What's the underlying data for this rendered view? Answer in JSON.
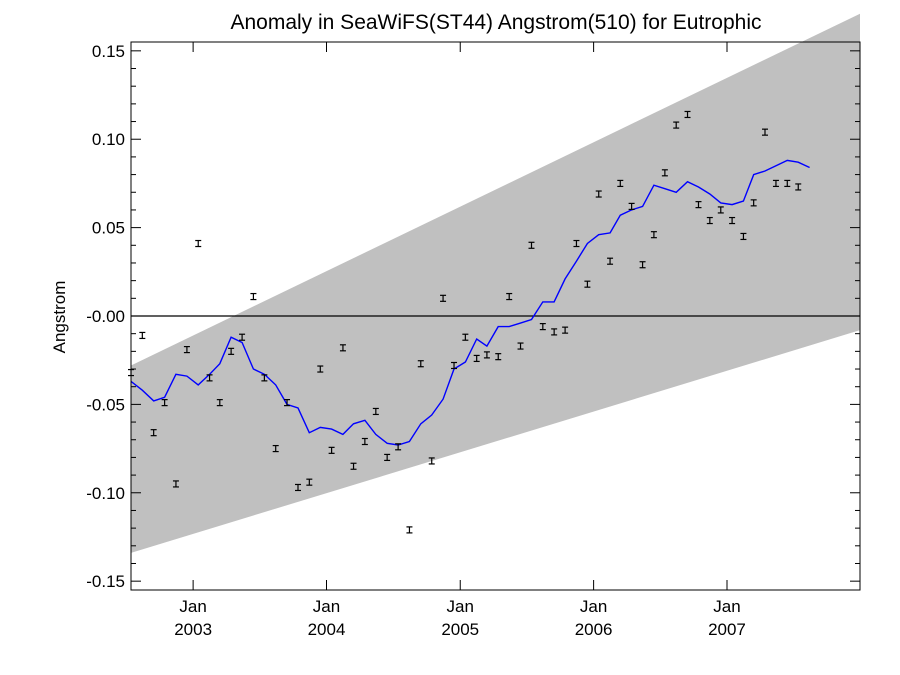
{
  "chart_data": {
    "type": "scatter",
    "title": "Anomaly in SeaWiFS(ST44) Angstrom(510) for Eutrophic",
    "xlabel": "",
    "ylabel": "Angstrom",
    "xlim": [
      "2002-07-15",
      "2007-12-31"
    ],
    "ylim": [
      -0.155,
      0.155
    ],
    "y_ticks": [
      {
        "value": 0.15,
        "label": "0.15"
      },
      {
        "value": 0.1,
        "label": "0.10"
      },
      {
        "value": 0.05,
        "label": "0.05"
      },
      {
        "value": 0.0,
        "label": "-0.00"
      },
      {
        "value": -0.05,
        "label": "-0.05"
      },
      {
        "value": -0.1,
        "label": "-0.10"
      },
      {
        "value": -0.15,
        "label": "-0.15"
      }
    ],
    "x_ticks": [
      {
        "date": "2003-01-01",
        "month": "Jan",
        "year": "2003"
      },
      {
        "date": "2004-01-01",
        "month": "Jan",
        "year": "2004"
      },
      {
        "date": "2005-01-01",
        "month": "Jan",
        "year": "2005"
      },
      {
        "date": "2006-01-01",
        "month": "Jan",
        "year": "2006"
      },
      {
        "date": "2007-01-01",
        "month": "Jan",
        "year": "2007"
      }
    ],
    "zero_line": 0.0,
    "band": {
      "color": "#c0c0c0",
      "upper": [
        {
          "x": "2002-07-15",
          "y": -0.028
        },
        {
          "x": "2007-12-31",
          "y": 0.171
        }
      ],
      "lower": [
        {
          "x": "2002-07-15",
          "y": -0.134
        },
        {
          "x": "2007-12-31",
          "y": -0.008
        }
      ]
    },
    "series": [
      {
        "style": "errorbar-points",
        "color": "#000000",
        "points": [
          {
            "x": "2002-07-15",
            "y": -0.032
          },
          {
            "x": "2002-08-15",
            "y": -0.011
          },
          {
            "x": "2002-09-15",
            "y": -0.066
          },
          {
            "x": "2002-10-15",
            "y": -0.049
          },
          {
            "x": "2002-11-15",
            "y": -0.095
          },
          {
            "x": "2002-12-15",
            "y": -0.019
          },
          {
            "x": "2003-01-15",
            "y": 0.041
          },
          {
            "x": "2003-02-15",
            "y": -0.035
          },
          {
            "x": "2003-03-15",
            "y": -0.049
          },
          {
            "x": "2003-04-15",
            "y": -0.02
          },
          {
            "x": "2003-05-15",
            "y": -0.012
          },
          {
            "x": "2003-06-15",
            "y": 0.011
          },
          {
            "x": "2003-07-15",
            "y": -0.035
          },
          {
            "x": "2003-08-15",
            "y": -0.075
          },
          {
            "x": "2003-09-15",
            "y": -0.049
          },
          {
            "x": "2003-10-15",
            "y": -0.097
          },
          {
            "x": "2003-11-15",
            "y": -0.094
          },
          {
            "x": "2003-12-15",
            "y": -0.03
          },
          {
            "x": "2004-01-15",
            "y": -0.076
          },
          {
            "x": "2004-02-15",
            "y": -0.018
          },
          {
            "x": "2004-03-15",
            "y": -0.085
          },
          {
            "x": "2004-04-15",
            "y": -0.071
          },
          {
            "x": "2004-05-15",
            "y": -0.054
          },
          {
            "x": "2004-06-15",
            "y": -0.08
          },
          {
            "x": "2004-07-15",
            "y": -0.074
          },
          {
            "x": "2004-08-15",
            "y": -0.121
          },
          {
            "x": "2004-09-15",
            "y": -0.027
          },
          {
            "x": "2004-10-15",
            "y": -0.082
          },
          {
            "x": "2004-11-15",
            "y": 0.01
          },
          {
            "x": "2004-12-15",
            "y": -0.028
          },
          {
            "x": "2005-01-15",
            "y": -0.012
          },
          {
            "x": "2005-02-15",
            "y": -0.024
          },
          {
            "x": "2005-03-15",
            "y": -0.022
          },
          {
            "x": "2005-04-15",
            "y": -0.023
          },
          {
            "x": "2005-05-15",
            "y": 0.011
          },
          {
            "x": "2005-06-15",
            "y": -0.017
          },
          {
            "x": "2005-07-15",
            "y": 0.04
          },
          {
            "x": "2005-08-15",
            "y": -0.006
          },
          {
            "x": "2005-09-15",
            "y": -0.009
          },
          {
            "x": "2005-10-15",
            "y": -0.008
          },
          {
            "x": "2005-11-15",
            "y": 0.041
          },
          {
            "x": "2005-12-15",
            "y": 0.018
          },
          {
            "x": "2006-01-15",
            "y": 0.069
          },
          {
            "x": "2006-02-15",
            "y": 0.031
          },
          {
            "x": "2006-03-15",
            "y": 0.075
          },
          {
            "x": "2006-04-15",
            "y": 0.062
          },
          {
            "x": "2006-05-15",
            "y": 0.029
          },
          {
            "x": "2006-06-15",
            "y": 0.046
          },
          {
            "x": "2006-07-15",
            "y": 0.081
          },
          {
            "x": "2006-08-15",
            "y": 0.108
          },
          {
            "x": "2006-09-15",
            "y": 0.114
          },
          {
            "x": "2006-10-15",
            "y": 0.063
          },
          {
            "x": "2006-11-15",
            "y": 0.054
          },
          {
            "x": "2006-12-15",
            "y": 0.06
          },
          {
            "x": "2007-01-15",
            "y": 0.054
          },
          {
            "x": "2007-02-15",
            "y": 0.045
          },
          {
            "x": "2007-03-15",
            "y": 0.064
          },
          {
            "x": "2007-04-15",
            "y": 0.104
          },
          {
            "x": "2007-05-15",
            "y": 0.075
          },
          {
            "x": "2007-06-15",
            "y": 0.075
          },
          {
            "x": "2007-07-15",
            "y": 0.073
          }
        ]
      },
      {
        "style": "line",
        "color": "#0000ff",
        "points": [
          {
            "x": "2002-07-15",
            "y": -0.037
          },
          {
            "x": "2002-08-15",
            "y": -0.042
          },
          {
            "x": "2002-09-15",
            "y": -0.048
          },
          {
            "x": "2002-10-15",
            "y": -0.046
          },
          {
            "x": "2002-11-15",
            "y": -0.033
          },
          {
            "x": "2002-12-15",
            "y": -0.034
          },
          {
            "x": "2003-01-15",
            "y": -0.039
          },
          {
            "x": "2003-02-15",
            "y": -0.033
          },
          {
            "x": "2003-03-15",
            "y": -0.027
          },
          {
            "x": "2003-04-15",
            "y": -0.012
          },
          {
            "x": "2003-05-15",
            "y": -0.015
          },
          {
            "x": "2003-06-15",
            "y": -0.03
          },
          {
            "x": "2003-07-15",
            "y": -0.033
          },
          {
            "x": "2003-08-15",
            "y": -0.039
          },
          {
            "x": "2003-09-15",
            "y": -0.05
          },
          {
            "x": "2003-10-15",
            "y": -0.052
          },
          {
            "x": "2003-11-15",
            "y": -0.066
          },
          {
            "x": "2003-12-15",
            "y": -0.063
          },
          {
            "x": "2004-01-15",
            "y": -0.064
          },
          {
            "x": "2004-02-15",
            "y": -0.067
          },
          {
            "x": "2004-03-15",
            "y": -0.061
          },
          {
            "x": "2004-04-15",
            "y": -0.059
          },
          {
            "x": "2004-05-15",
            "y": -0.067
          },
          {
            "x": "2004-06-15",
            "y": -0.072
          },
          {
            "x": "2004-07-15",
            "y": -0.073
          },
          {
            "x": "2004-08-15",
            "y": -0.071
          },
          {
            "x": "2004-09-15",
            "y": -0.061
          },
          {
            "x": "2004-10-15",
            "y": -0.056
          },
          {
            "x": "2004-11-15",
            "y": -0.047
          },
          {
            "x": "2004-12-15",
            "y": -0.03
          },
          {
            "x": "2005-01-15",
            "y": -0.026
          },
          {
            "x": "2005-02-15",
            "y": -0.013
          },
          {
            "x": "2005-03-15",
            "y": -0.017
          },
          {
            "x": "2005-04-15",
            "y": -0.006
          },
          {
            "x": "2005-05-15",
            "y": -0.006
          },
          {
            "x": "2005-06-15",
            "y": -0.004
          },
          {
            "x": "2005-07-15",
            "y": -0.002
          },
          {
            "x": "2005-08-15",
            "y": 0.008
          },
          {
            "x": "2005-09-15",
            "y": 0.008
          },
          {
            "x": "2005-10-15",
            "y": 0.021
          },
          {
            "x": "2005-11-15",
            "y": 0.031
          },
          {
            "x": "2005-12-15",
            "y": 0.041
          },
          {
            "x": "2006-01-15",
            "y": 0.046
          },
          {
            "x": "2006-02-15",
            "y": 0.047
          },
          {
            "x": "2006-03-15",
            "y": 0.057
          },
          {
            "x": "2006-04-15",
            "y": 0.06
          },
          {
            "x": "2006-05-15",
            "y": 0.062
          },
          {
            "x": "2006-06-15",
            "y": 0.074
          },
          {
            "x": "2006-07-15",
            "y": 0.072
          },
          {
            "x": "2006-08-15",
            "y": 0.07
          },
          {
            "x": "2006-09-15",
            "y": 0.076
          },
          {
            "x": "2006-10-15",
            "y": 0.073
          },
          {
            "x": "2006-11-15",
            "y": 0.069
          },
          {
            "x": "2006-12-15",
            "y": 0.064
          },
          {
            "x": "2007-01-15",
            "y": 0.063
          },
          {
            "x": "2007-02-15",
            "y": 0.065
          },
          {
            "x": "2007-03-15",
            "y": 0.08
          },
          {
            "x": "2007-04-15",
            "y": 0.082
          },
          {
            "x": "2007-05-15",
            "y": 0.085
          },
          {
            "x": "2007-06-15",
            "y": 0.088
          },
          {
            "x": "2007-07-15",
            "y": 0.087
          },
          {
            "x": "2007-08-15",
            "y": 0.084
          }
        ]
      }
    ],
    "grid": false,
    "legend": "none"
  }
}
